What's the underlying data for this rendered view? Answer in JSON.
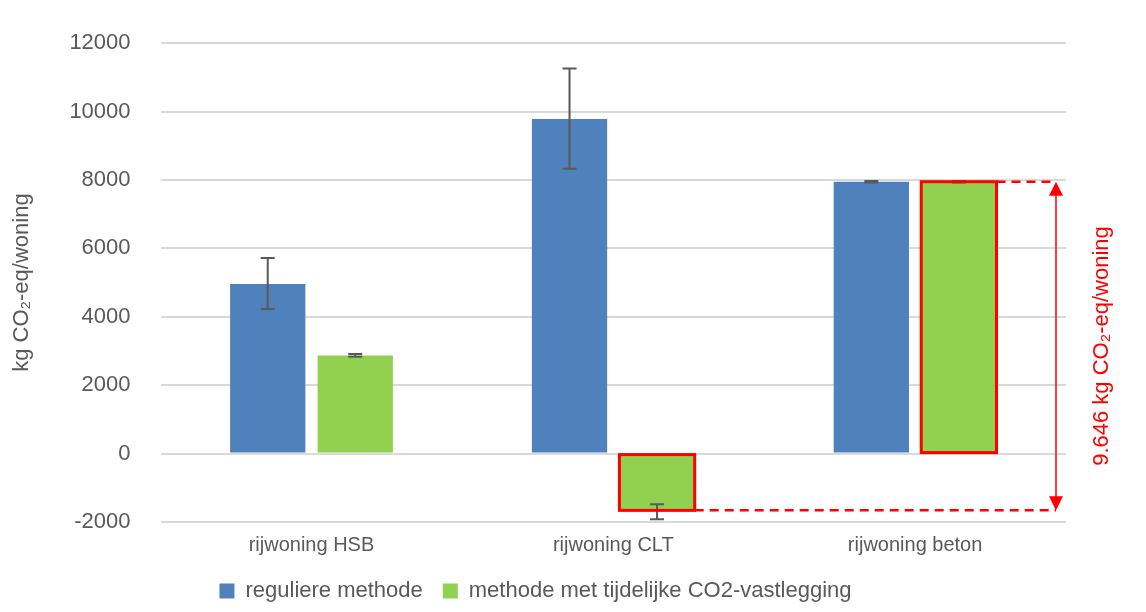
{
  "chart_data": {
    "type": "bar",
    "ylabel": "kg CO₂-eq/woning",
    "categories": [
      "rijwoning HSB",
      "rijwoning CLT",
      "rijwoning beton"
    ],
    "series": [
      {
        "name": "reguliere methode",
        "color": "#4f81bd",
        "values": [
          4960,
          9780,
          7950
        ],
        "errors": [
          [
            4230,
            5720
          ],
          [
            8330,
            11260
          ],
          [
            7930,
            7970
          ]
        ]
      },
      {
        "name": "methode met tijdelijke CO2-vastlegging",
        "color": "#92d050",
        "values": [
          2870,
          -1660,
          7950
        ],
        "errors": [
          [
            2830,
            2910
          ],
          [
            -1920,
            -1480
          ],
          [
            7930,
            7970
          ]
        ]
      }
    ],
    "ylim": [
      -2000,
      12000
    ],
    "yticks": [
      -2000,
      0,
      2000,
      4000,
      6000,
      8000,
      10000,
      12000
    ],
    "grid": "y",
    "legend": "bottom",
    "annotations": [
      "9.646 kg CO₂-eq/woning"
    ]
  }
}
